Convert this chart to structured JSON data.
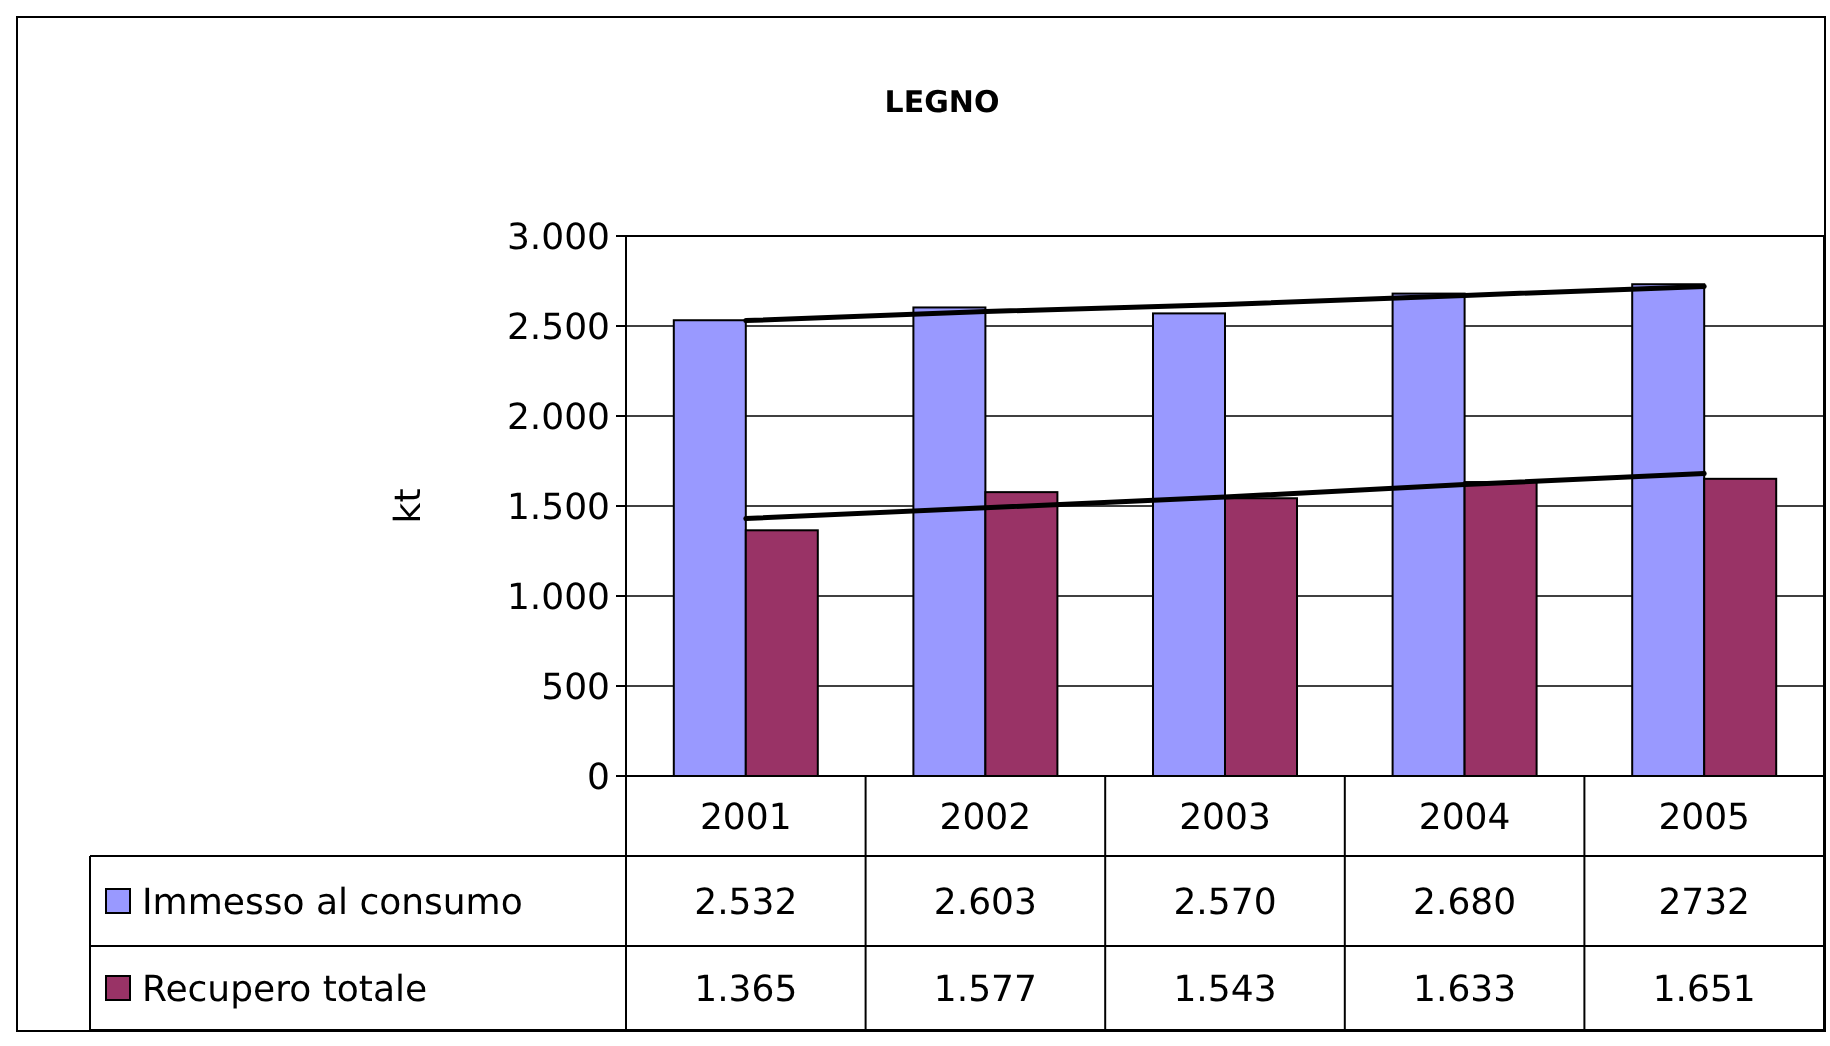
{
  "chart_data": {
    "type": "bar",
    "title": "LEGNO",
    "ylabel": "kt",
    "categories": [
      "2001",
      "2002",
      "2003",
      "2004",
      "2005"
    ],
    "series": [
      {
        "name": "Immesso al consumo",
        "color": "#9999ff",
        "values": [
          2532,
          2603,
          2570,
          2680,
          2732
        ],
        "value_labels": [
          "2.532",
          "2.603",
          "2.570",
          "2.680",
          "2732"
        ]
      },
      {
        "name": "Recupero totale",
        "color": "#993366",
        "values": [
          1365,
          1577,
          1543,
          1633,
          1651
        ],
        "value_labels": [
          "1.365",
          "1.577",
          "1.543",
          "1.633",
          "1.651"
        ]
      },
      {
        "type": "line",
        "color": "#000000",
        "values": [
          2530,
          2580,
          2620,
          2670,
          2720
        ]
      },
      {
        "type": "line",
        "color": "#000000",
        "values": [
          1430,
          1490,
          1550,
          1620,
          1680
        ]
      }
    ],
    "ylim": [
      0,
      3000
    ],
    "yticks": [
      {
        "value": 0,
        "label": "0"
      },
      {
        "value": 500,
        "label": "500"
      },
      {
        "value": 1000,
        "label": "1.000"
      },
      {
        "value": 1500,
        "label": "1.500"
      },
      {
        "value": 2000,
        "label": "2.000"
      },
      {
        "value": 2500,
        "label": "2.500"
      },
      {
        "value": 3000,
        "label": "3.000"
      }
    ],
    "grid": "y",
    "legend": "bottom"
  }
}
